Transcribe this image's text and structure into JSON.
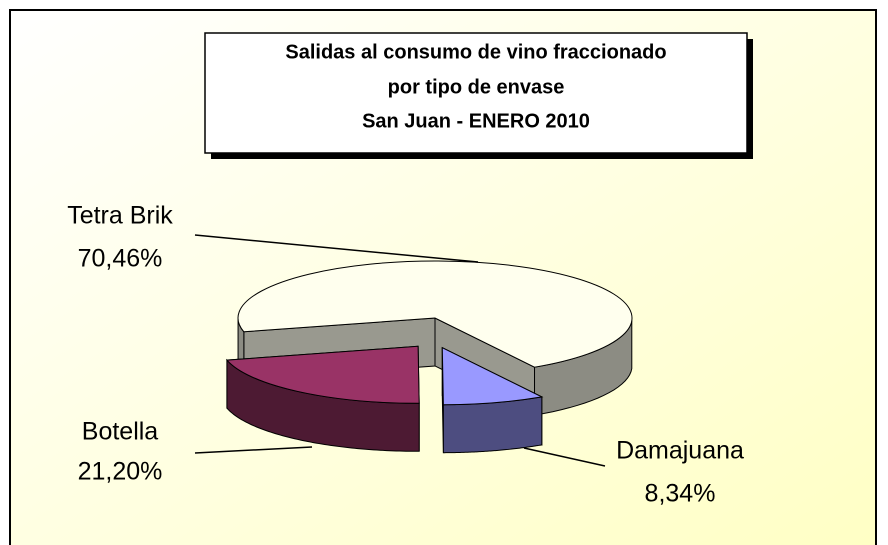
{
  "chart_data": {
    "type": "pie",
    "title": [
      "Salidas al consumo de vino fraccionado",
      "por tipo de envase",
      "San Juan - ENERO 2010"
    ],
    "categories": [
      "Tetra Brik",
      "Damajuana",
      "Botella"
    ],
    "values": [
      70.46,
      8.34,
      21.2
    ],
    "value_labels": [
      "70,46%",
      "8,34%",
      "21,20%"
    ],
    "colors": [
      "#ffffee",
      "#9999ff",
      "#993366"
    ]
  }
}
